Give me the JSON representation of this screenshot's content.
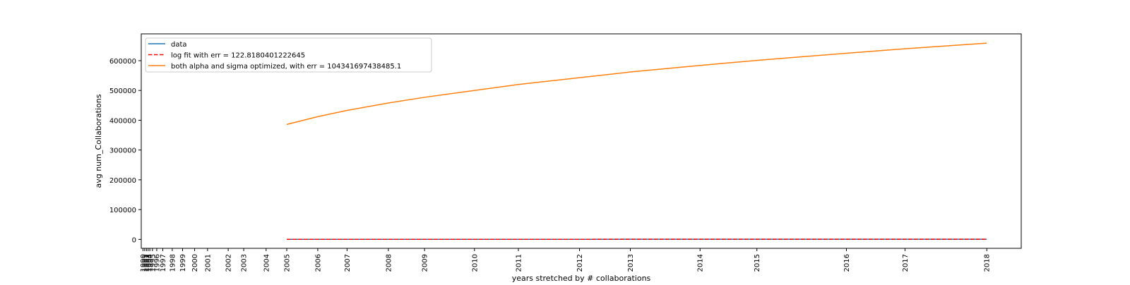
{
  "chart_data": {
    "type": "line",
    "title": "",
    "xlabel": "years stretched by # collaborations",
    "ylabel": "avg num_Collaborations",
    "ylim": [
      -30000,
      690000
    ],
    "grid": false,
    "legend_position": "top-left",
    "yticks": [
      0,
      100000,
      200000,
      300000,
      400000,
      500000,
      600000
    ],
    "xticks": [
      {
        "label": "1990",
        "value": 0.0
      },
      {
        "label": "1991",
        "value": 0.2
      },
      {
        "label": "1992",
        "value": 0.4
      },
      {
        "label": "1993",
        "value": 0.6
      },
      {
        "label": "1994",
        "value": 0.8
      },
      {
        "label": "1995",
        "value": 1.1
      },
      {
        "label": "1996",
        "value": 1.6
      },
      {
        "label": "1997",
        "value": 2.3
      },
      {
        "label": "1998",
        "value": 3.4
      },
      {
        "label": "1999",
        "value": 4.6
      },
      {
        "label": "2000",
        "value": 6.0
      },
      {
        "label": "2001",
        "value": 7.5
      },
      {
        "label": "2002",
        "value": 9.9
      },
      {
        "label": "2003",
        "value": 11.7
      },
      {
        "label": "2004",
        "value": 14.3
      },
      {
        "label": "2005",
        "value": 16.7
      },
      {
        "label": "2006",
        "value": 20.3
      },
      {
        "label": "2007",
        "value": 23.7
      },
      {
        "label": "2008",
        "value": 28.5
      },
      {
        "label": "2009",
        "value": 32.7
      },
      {
        "label": "2010",
        "value": 38.5
      },
      {
        "label": "2011",
        "value": 43.6
      },
      {
        "label": "2012",
        "value": 50.7
      },
      {
        "label": "2013",
        "value": 56.6
      },
      {
        "label": "2014",
        "value": 64.7
      },
      {
        "label": "2015",
        "value": 71.3
      },
      {
        "label": "2016",
        "value": 81.7
      },
      {
        "label": "2017",
        "value": 88.5
      },
      {
        "label": "2018",
        "value": 98.0
      }
    ],
    "xlim": [
      -0.2,
      102.0
    ],
    "series": [
      {
        "name": "data",
        "color": "#1f77b4",
        "dash": "solid",
        "x": [
          16.7,
          20.3,
          23.7,
          28.5,
          32.7,
          38.5,
          43.6,
          50.7,
          56.6,
          64.7,
          71.3,
          81.7,
          88.5,
          98.0
        ],
        "y": [
          150,
          170,
          190,
          220,
          240,
          270,
          300,
          330,
          360,
          390,
          420,
          450,
          480,
          520
        ]
      },
      {
        "name": "log fit with err = 122.8180401222645",
        "color": "#ff0000",
        "dash": "dashed",
        "x": [
          16.7,
          20.3,
          23.7,
          28.5,
          32.7,
          38.5,
          43.6,
          50.7,
          56.6,
          64.7,
          71.3,
          81.7,
          88.5,
          98.0
        ],
        "y": [
          140,
          175,
          195,
          225,
          245,
          275,
          300,
          330,
          355,
          385,
          415,
          450,
          480,
          515
        ]
      },
      {
        "name": "both alpha and sigma optimized, with err = 104341697438485.1",
        "color": "#ff7f0e",
        "dash": "solid",
        "x": [
          16.7,
          20.3,
          23.7,
          28.5,
          32.7,
          38.5,
          43.6,
          50.7,
          56.6,
          64.7,
          71.3,
          81.7,
          88.5,
          98.0
        ],
        "y": [
          386000,
          412000,
          433000,
          458000,
          477000,
          500000,
          520000,
          543000,
          562000,
          584000,
          601000,
          625000,
          640000,
          659000
        ]
      }
    ]
  }
}
